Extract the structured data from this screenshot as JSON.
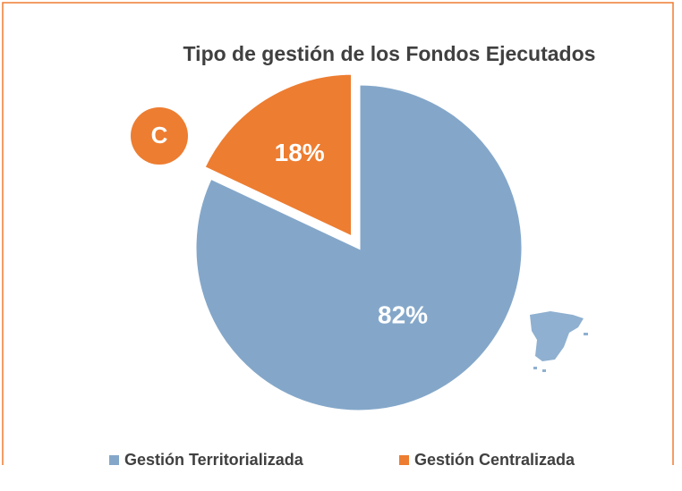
{
  "chart_data": {
    "type": "pie",
    "title": "Tipo de gestión de los Fondos Ejecutados",
    "categories": [
      "Gestión Territorializada",
      "Gestión Centralizada"
    ],
    "values": [
      82,
      18
    ],
    "value_labels": [
      "82%",
      "18%"
    ],
    "colors": [
      "#84a7c9",
      "#ed7d31"
    ],
    "annotations": [
      "C"
    ],
    "legend": "bottom"
  }
}
